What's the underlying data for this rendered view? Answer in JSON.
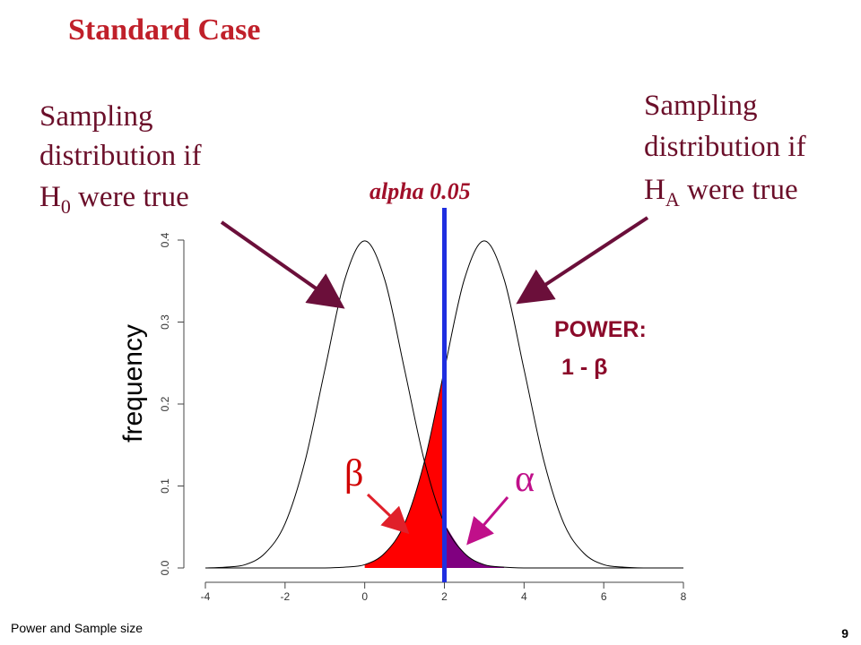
{
  "chart_data": {
    "type": "line",
    "title": "Standard Case",
    "ylabel": "frequency",
    "x": [
      -4,
      -3.5,
      -3,
      -2.5,
      -2,
      -1.5,
      -1,
      -0.5,
      0,
      0.5,
      1,
      1.5,
      2,
      2.5,
      3,
      3.5,
      4,
      4.5,
      5,
      5.5,
      6,
      6.5,
      7,
      7.5,
      8
    ],
    "series": [
      {
        "name": "H0",
        "color": "#000000",
        "values": [
          0,
          0.001,
          0.004,
          0.018,
          0.054,
          0.13,
          0.242,
          0.352,
          0.399,
          0.352,
          0.242,
          0.13,
          0.054,
          0.018,
          0.004,
          0.001,
          0,
          0,
          0,
          0,
          0,
          0,
          0,
          0,
          0
        ]
      },
      {
        "name": "HA",
        "color": "#000000",
        "values": [
          0,
          0,
          0,
          0,
          0,
          0,
          0,
          0.001,
          0.004,
          0.018,
          0.054,
          0.13,
          0.242,
          0.352,
          0.399,
          0.352,
          0.242,
          0.13,
          0.054,
          0.018,
          0.004,
          0.001,
          0,
          0,
          0
        ]
      }
    ],
    "threshold": {
      "value": 2,
      "label": "alpha 0.05",
      "color": "#1f2ee0"
    },
    "beta_color": "#ff0000",
    "alpha_color": "#800080",
    "xlim": [
      -4,
      8
    ],
    "xticks": [
      -4,
      -2,
      0,
      2,
      4,
      6,
      8
    ],
    "ylim": [
      0,
      0.4
    ],
    "yticks": [
      {
        "value": 0,
        "label": "0.0"
      },
      0.1,
      0.2,
      0.3,
      0.4
    ],
    "annotations": {
      "left": {
        "lines": [
          "Sampling",
          "distribution if"
        ],
        "base": "H",
        "sub": "0",
        "tail": " were true"
      },
      "right": {
        "lines": [
          "Sampling",
          "distribution if"
        ],
        "base": "H",
        "sub": "A",
        "tail": " were true"
      },
      "power": [
        "POWER:",
        "1 - β"
      ],
      "beta": "β",
      "alpha": "α"
    },
    "footer": "Power and Sample size",
    "page_number": "9"
  }
}
